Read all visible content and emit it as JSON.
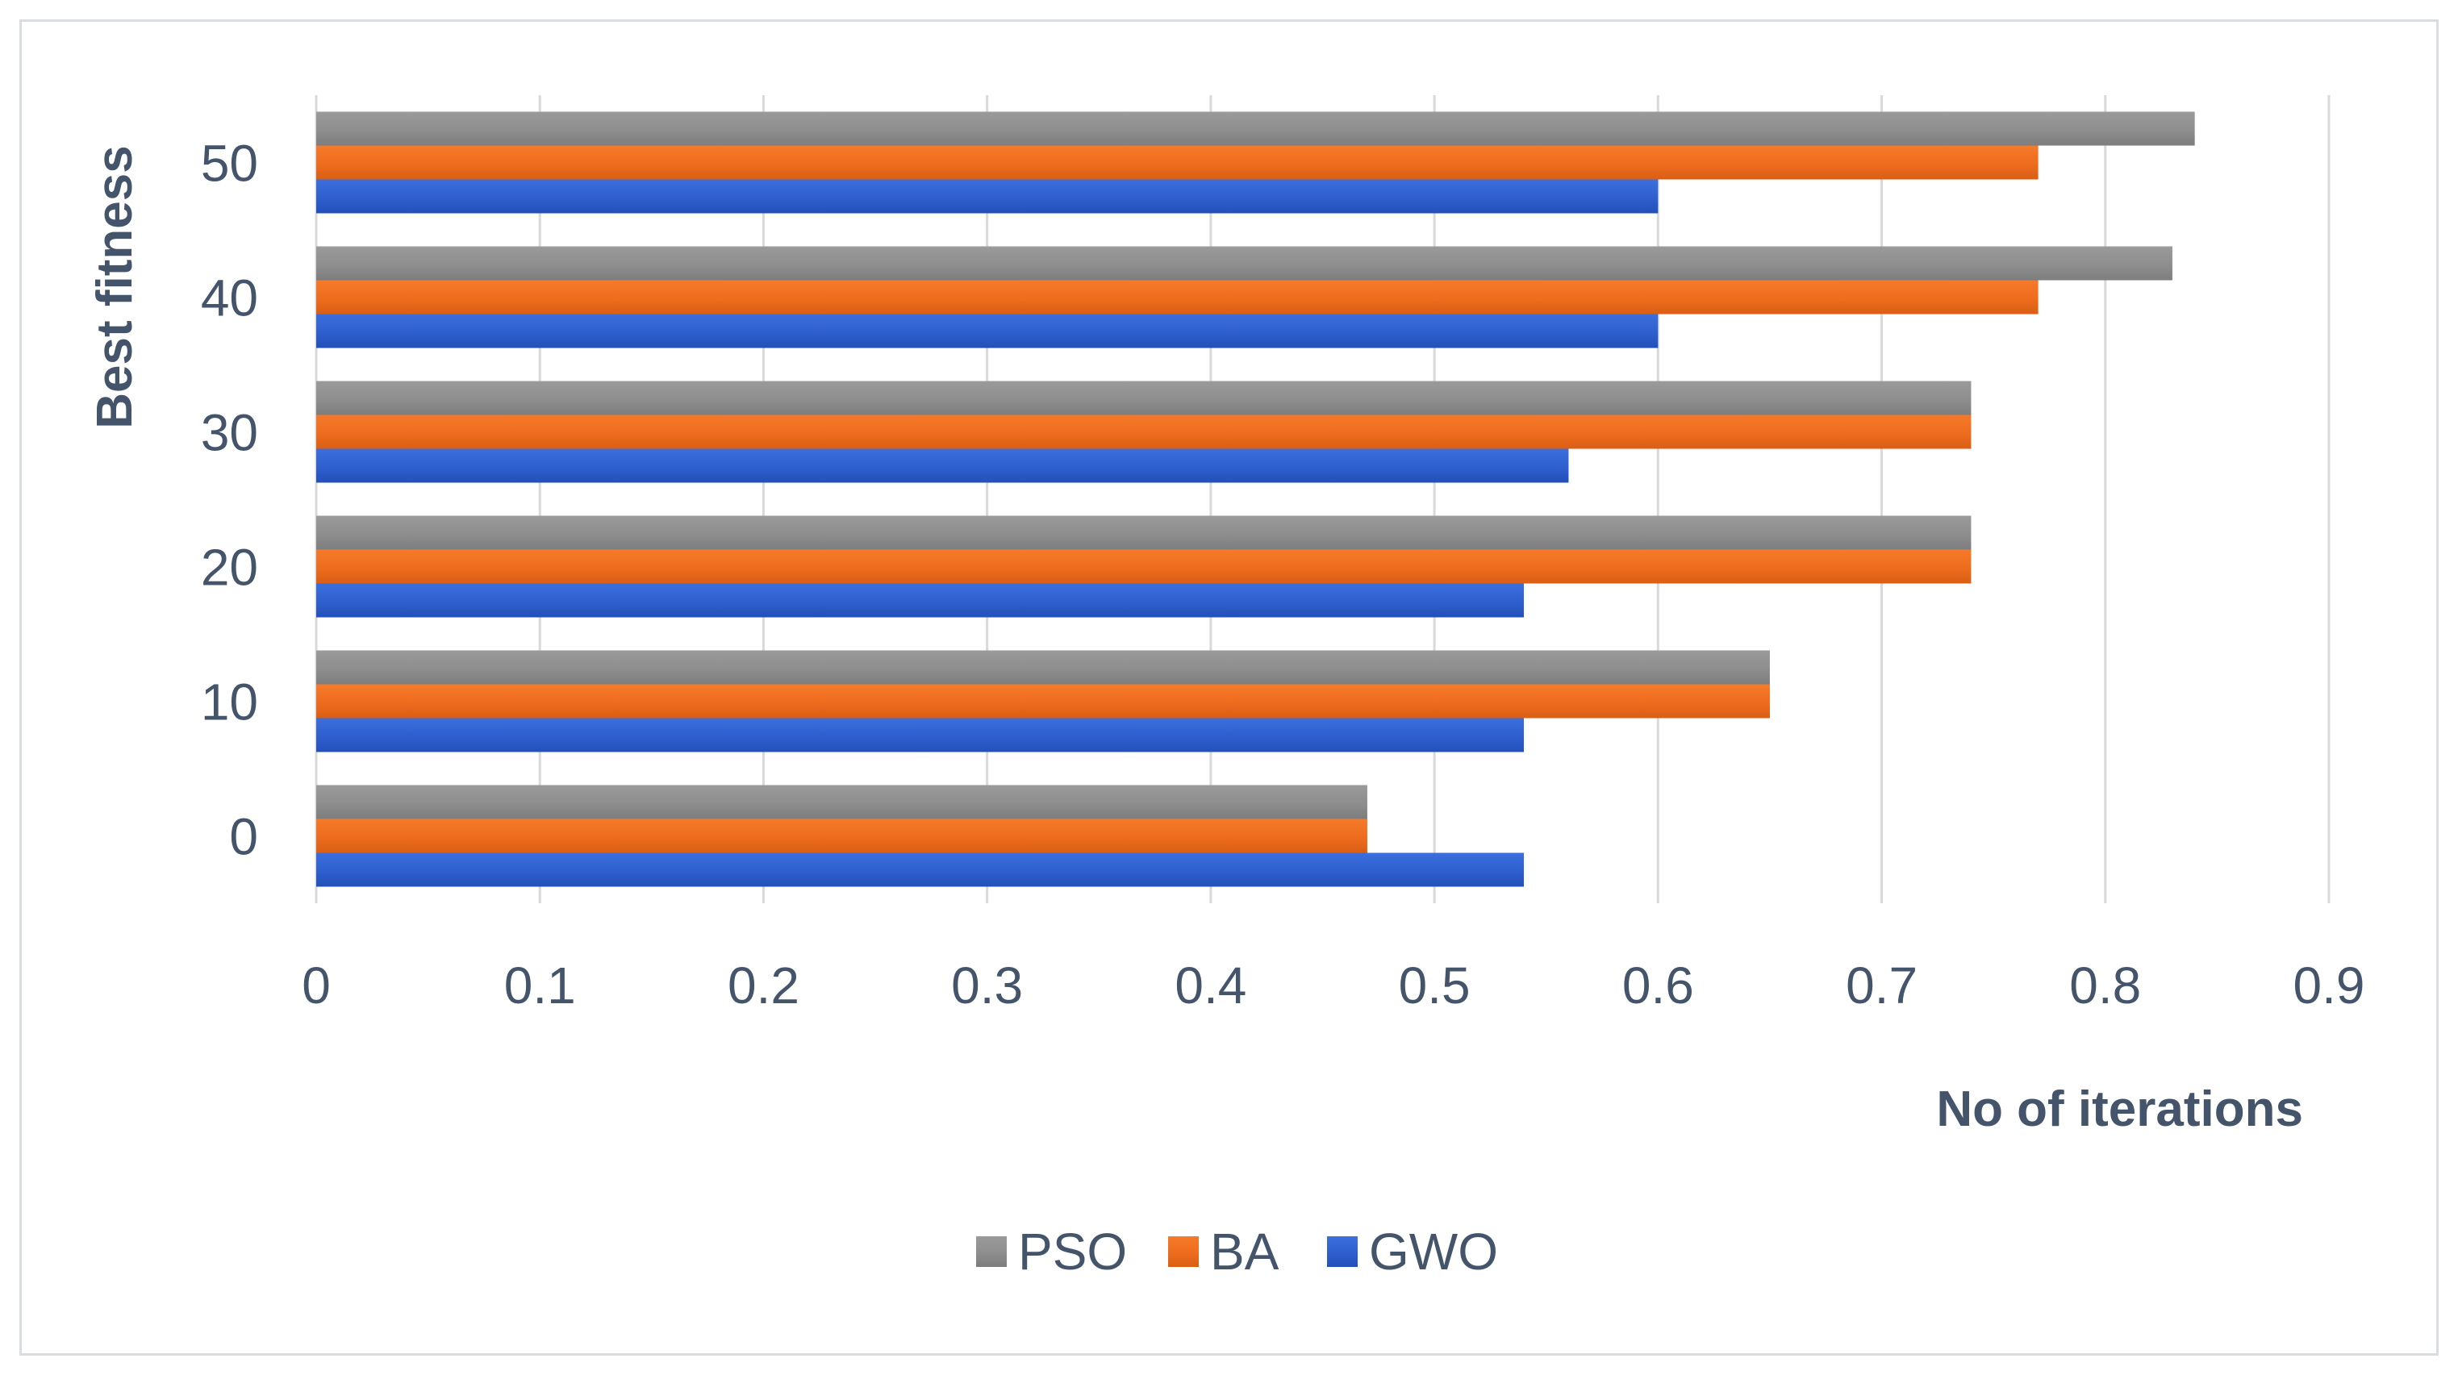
{
  "chart_data": {
    "type": "bar",
    "orientation": "horizontal",
    "title": "",
    "categories": [
      "0",
      "10",
      "20",
      "30",
      "40",
      "50"
    ],
    "series": [
      {
        "name": "PSO",
        "color": "#8c8c8c",
        "values": [
          0.47,
          0.65,
          0.74,
          0.74,
          0.83,
          0.84
        ]
      },
      {
        "name": "BA",
        "color": "#ed6b1d",
        "values": [
          0.47,
          0.65,
          0.74,
          0.74,
          0.77,
          0.77
        ]
      },
      {
        "name": "GWO",
        "color": "#2f5fcf",
        "values": [
          0.54,
          0.54,
          0.54,
          0.56,
          0.6,
          0.6
        ]
      }
    ],
    "xlabel": "No of iterations",
    "ylabel": "Best fitness",
    "xlim": [
      0,
      0.9
    ],
    "xticks": [
      "0",
      "0.1",
      "0.2",
      "0.3",
      "0.4",
      "0.5",
      "0.6",
      "0.7",
      "0.8",
      "0.9"
    ],
    "grid": "vertical",
    "legend": "bottom-center"
  }
}
